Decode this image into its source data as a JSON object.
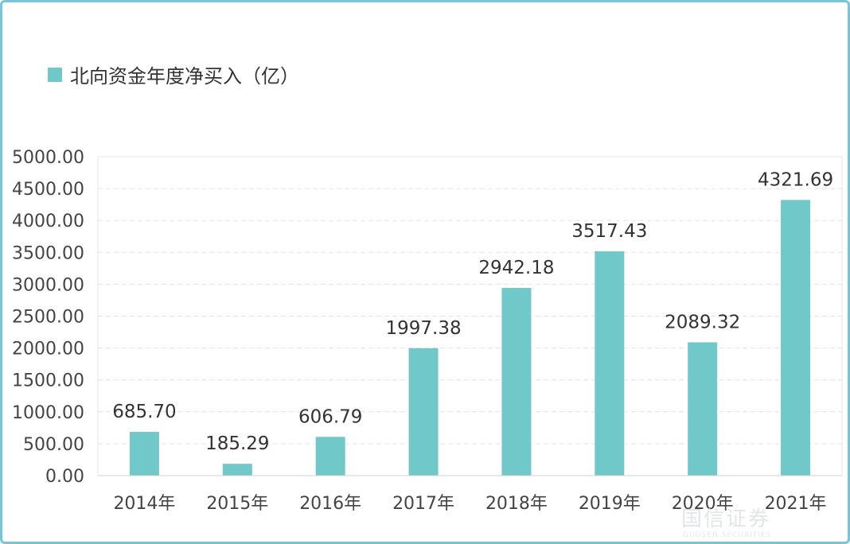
{
  "chart_data": {
    "type": "bar",
    "legend": "北向资金年度净买入（亿）",
    "legend_position": "top-left",
    "categories": [
      "2014年",
      "2015年",
      "2016年",
      "2017年",
      "2018年",
      "2019年",
      "2020年",
      "2021年"
    ],
    "series": [
      {
        "name": "北向资金年度净买入（亿）",
        "values": [
          685.7,
          185.29,
          606.79,
          1997.38,
          2942.18,
          3517.43,
          2089.32,
          4321.69
        ],
        "labels": [
          "685.70",
          "185.29",
          "606.79",
          "1997.38",
          "2942.18",
          "3517.43",
          "2089.32",
          "4321.69"
        ]
      }
    ],
    "yticks": [
      "0.00",
      "500.00",
      "1000.00",
      "1500.00",
      "2000.00",
      "2500.00",
      "3000.00",
      "3500.00",
      "4000.00",
      "4500.00",
      "5000.00"
    ],
    "ylim": [
      0,
      5000
    ],
    "grid": true,
    "bar_color": "#70c9c8"
  },
  "watermark": {
    "logo_text": "国信证券",
    "sub_text": "GUOSEN SECURITIES"
  }
}
